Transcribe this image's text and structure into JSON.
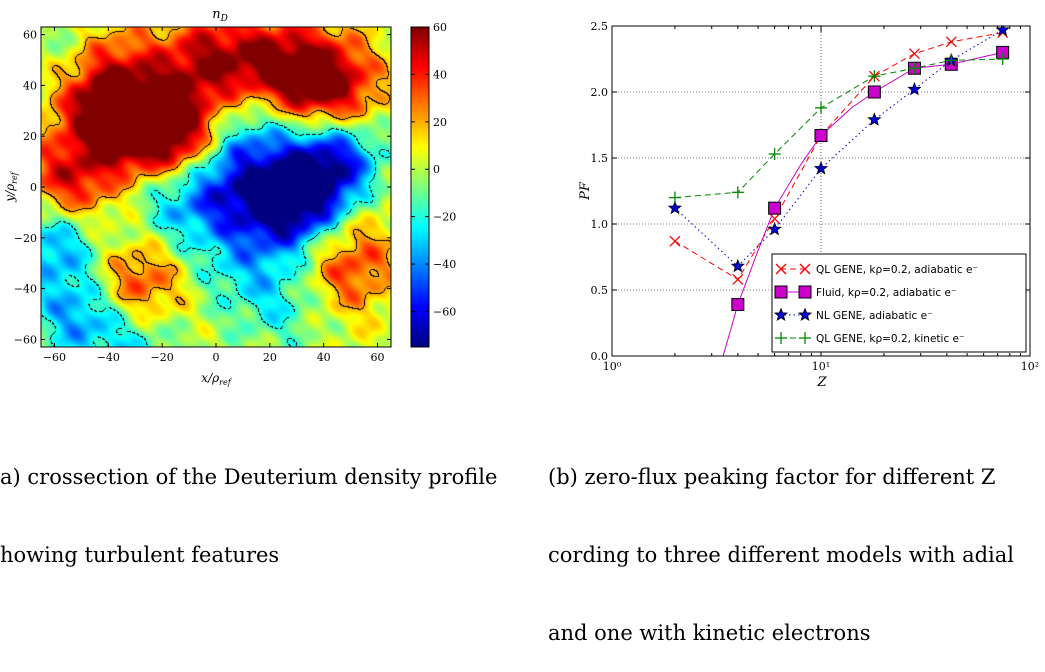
{
  "chart_data": [
    {
      "type": "heatmap",
      "title": "n_D",
      "xlabel": "x/ρ_ref",
      "ylabel": "y/ρ_ref",
      "xlim": [
        -65,
        65
      ],
      "ylim": [
        -63,
        63
      ],
      "x_ticks": [
        "−60",
        "−40",
        "−20",
        "0",
        "20",
        "40",
        "60"
      ],
      "y_ticks": [
        "60",
        "40",
        "20",
        "0",
        "−20",
        "−40",
        "−60"
      ],
      "colorbar": {
        "min": -75,
        "max": 60,
        "ticks": [
          "60",
          "40",
          "20",
          "0",
          "−20",
          "−40",
          "−60"
        ]
      },
      "blobs": [
        {
          "x": -28,
          "y": 25,
          "v": 58
        },
        {
          "x": -12,
          "y": 20,
          "v": 52
        },
        {
          "x": -42,
          "y": 30,
          "v": 45
        },
        {
          "x": -55,
          "y": 0,
          "v": 50
        },
        {
          "x": -40,
          "y": 50,
          "v": 28
        },
        {
          "x": -5,
          "y": 50,
          "v": 40
        },
        {
          "x": 15,
          "y": 50,
          "v": 35
        },
        {
          "x": 35,
          "y": 45,
          "v": 50
        },
        {
          "x": 45,
          "y": 35,
          "v": 40
        },
        {
          "x": -30,
          "y": -40,
          "v": 45
        },
        {
          "x": 48,
          "y": -33,
          "v": 35
        },
        {
          "x": 50,
          "y": -10,
          "v": 18
        },
        {
          "x": 5,
          "y": 0,
          "v": -40
        },
        {
          "x": 25,
          "y": -10,
          "v": -55
        },
        {
          "x": 38,
          "y": 0,
          "v": -60
        },
        {
          "x": 45,
          "y": 15,
          "v": -45
        },
        {
          "x": -15,
          "y": -5,
          "v": -30
        },
        {
          "x": 10,
          "y": 20,
          "v": -35
        },
        {
          "x": -50,
          "y": -50,
          "v": -40
        },
        {
          "x": -60,
          "y": -20,
          "v": -45
        },
        {
          "x": 5,
          "y": -30,
          "v": -20
        },
        {
          "x": 25,
          "y": -45,
          "v": -25
        },
        {
          "x": -30,
          "y": -60,
          "v": -25
        },
        {
          "x": -55,
          "y": 55,
          "v": -15
        }
      ]
    },
    {
      "type": "line",
      "title": "",
      "xlabel": "Z",
      "ylabel": "PF",
      "xscale": "log",
      "xlim": [
        1,
        100
      ],
      "ylim": [
        0,
        2.5
      ],
      "grid": true,
      "legend_position": "lower-right",
      "x_ticks": [
        "10⁰",
        "10¹",
        "10²"
      ],
      "y_ticks": [
        "0.0",
        "0.5",
        "1.0",
        "1.5",
        "2.0",
        "2.5"
      ],
      "series": [
        {
          "name": "QL GENE, kρ=0.2, adiabatic e⁻",
          "marker": "x",
          "style": "dashed",
          "color": "#ff0000",
          "x": [
            2,
            4,
            6,
            10,
            18,
            28,
            42,
            74
          ],
          "y": [
            0.87,
            0.58,
            1.04,
            1.67,
            2.12,
            2.29,
            2.38,
            2.45
          ]
        },
        {
          "name": "Fluid, kρ=0.2, adiabatic e⁻",
          "marker": "square",
          "style": "solid",
          "color": "#cc00cc",
          "x": [
            4,
            6,
            10,
            18,
            28,
            42,
            74
          ],
          "y": [
            0.39,
            1.12,
            1.67,
            2.0,
            2.18,
            2.21,
            2.3
          ],
          "curve_x": [
            3.4,
            3.7,
            4,
            5,
            6,
            8,
            10,
            14,
            18,
            28,
            42,
            74
          ],
          "curve_y": [
            0.0,
            0.2,
            0.39,
            0.8,
            1.12,
            1.45,
            1.67,
            1.88,
            2.0,
            2.18,
            2.21,
            2.3
          ]
        },
        {
          "name": "NL GENE, adiabatic e⁻",
          "marker": "star",
          "style": "dotted",
          "color": "#0000cc",
          "x": [
            2,
            4,
            6,
            10,
            18,
            28,
            42,
            74
          ],
          "y": [
            1.12,
            0.68,
            0.96,
            1.42,
            1.79,
            2.02,
            2.24,
            2.47
          ]
        },
        {
          "name": "QL GENE, kρ=0.2, kinetic e⁻",
          "marker": "plus",
          "style": "dashed",
          "color": "#008800",
          "x": [
            2,
            4,
            6,
            10,
            18,
            28,
            42,
            74
          ],
          "y": [
            1.2,
            1.24,
            1.53,
            1.88,
            2.12,
            2.18,
            2.24,
            2.25
          ]
        }
      ]
    }
  ],
  "captions": {
    "a_line1": "a) crossection of the Deuterium density profile",
    "a_line2": "howing turbulent features",
    "b_line1": "(b) zero-flux peaking factor for different Z",
    "b_line2": "cording to three different models with adial",
    "b_line3": "and one with kinetic electrons"
  }
}
